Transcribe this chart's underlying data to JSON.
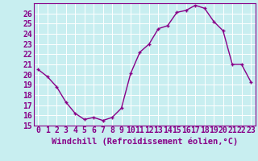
{
  "x": [
    0,
    1,
    2,
    3,
    4,
    5,
    6,
    7,
    8,
    9,
    10,
    11,
    12,
    13,
    14,
    15,
    16,
    17,
    18,
    19,
    20,
    21,
    22,
    23
  ],
  "y": [
    20.5,
    19.8,
    18.8,
    17.3,
    16.2,
    15.6,
    15.8,
    15.5,
    15.8,
    16.7,
    20.1,
    22.2,
    23.0,
    24.5,
    24.8,
    26.1,
    26.3,
    26.8,
    26.5,
    25.2,
    24.3,
    21.0,
    21.0,
    19.3
  ],
  "line_color": "#880088",
  "marker": "+",
  "bg_color": "#c8eef0",
  "grid_color": "#ffffff",
  "xlabel": "Windchill (Refroidissement éolien,°C)",
  "ylim": [
    15,
    27
  ],
  "xlim": [
    -0.5,
    23.5
  ],
  "yticks": [
    15,
    16,
    17,
    18,
    19,
    20,
    21,
    22,
    23,
    24,
    25,
    26
  ],
  "xticks": [
    0,
    1,
    2,
    3,
    4,
    5,
    6,
    7,
    8,
    9,
    10,
    11,
    12,
    13,
    14,
    15,
    16,
    17,
    18,
    19,
    20,
    21,
    22,
    23
  ],
  "xlabel_fontsize": 7.5,
  "tick_fontsize": 7,
  "line_width": 1.0,
  "marker_size": 3.5
}
